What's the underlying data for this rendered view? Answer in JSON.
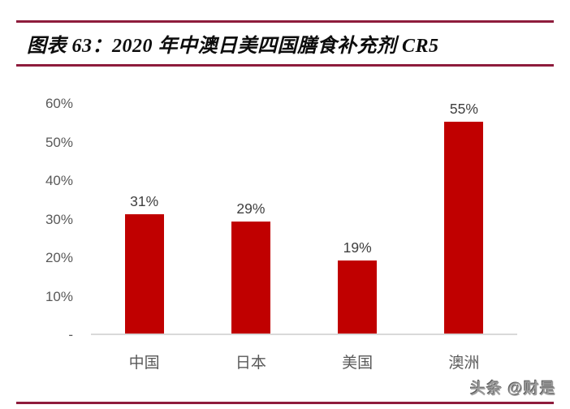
{
  "header": {
    "title": "图表 63：2020 年中澳日美四国膳食补充剂 CR5",
    "accent_color": "#8E1C3C"
  },
  "chart_data": {
    "type": "bar",
    "title": "2020 年中澳日美四国膳食补充剂 CR5",
    "categories": [
      "中国",
      "日本",
      "美国",
      "澳洲"
    ],
    "values": [
      31,
      29,
      19,
      55
    ],
    "data_labels": [
      "31%",
      "29%",
      "19%",
      "55%"
    ],
    "y_ticks": [
      "60%",
      "50%",
      "40%",
      "30%",
      "20%",
      "10%",
      "-"
    ],
    "y_tick_values": [
      60,
      50,
      40,
      30,
      20,
      10,
      0
    ],
    "ylim": [
      0,
      60
    ],
    "xlabel": "",
    "ylabel": "",
    "grid": false,
    "legend": false,
    "bar_color": "#C00000",
    "axis_line_color": "#D9D9D9",
    "tick_label_color": "#595959",
    "value_label_color": "#3f3f3f"
  },
  "footer": {
    "watermark": "头条 @财是"
  }
}
